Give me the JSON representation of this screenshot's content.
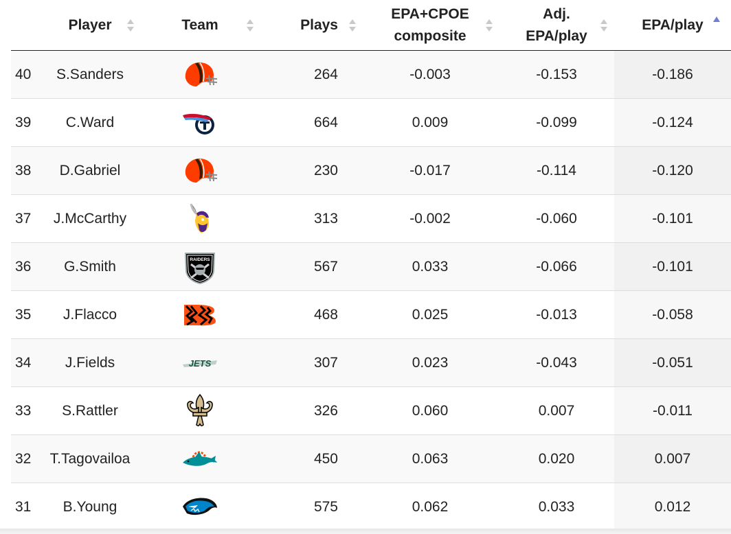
{
  "table": {
    "headers": {
      "rank": "",
      "player": "Player",
      "team": "Team",
      "plays": "Plays",
      "composite_line1": "EPA+CPOE",
      "composite_line2": "composite",
      "adj_line1": "Adj.",
      "adj_line2": "EPA/play",
      "epa": "EPA/play"
    },
    "sorted_column": "EPA/play",
    "sort_direction": "ascending",
    "rows": [
      {
        "rank": "40",
        "player": "S.Sanders",
        "team_logo": "browns-helmet-icon",
        "plays": "264",
        "composite": "-0.003",
        "adj_epa": "-0.153",
        "epa": "-0.186"
      },
      {
        "rank": "39",
        "player": "C.Ward",
        "team_logo": "titans-logo-icon",
        "plays": "664",
        "composite": "0.009",
        "adj_epa": "-0.099",
        "epa": "-0.124"
      },
      {
        "rank": "38",
        "player": "D.Gabriel",
        "team_logo": "browns-helmet-icon",
        "plays": "230",
        "composite": "-0.017",
        "adj_epa": "-0.114",
        "epa": "-0.120"
      },
      {
        "rank": "37",
        "player": "J.McCarthy",
        "team_logo": "vikings-logo-icon",
        "plays": "313",
        "composite": "-0.002",
        "adj_epa": "-0.060",
        "epa": "-0.101"
      },
      {
        "rank": "36",
        "player": "G.Smith",
        "team_logo": "raiders-shield-icon",
        "plays": "567",
        "composite": "0.033",
        "adj_epa": "-0.066",
        "epa": "-0.101"
      },
      {
        "rank": "35",
        "player": "J.Flacco",
        "team_logo": "bengals-logo-icon",
        "plays": "468",
        "composite": "0.025",
        "adj_epa": "-0.013",
        "epa": "-0.058"
      },
      {
        "rank": "34",
        "player": "J.Fields",
        "team_logo": "jets-wordmark-icon",
        "plays": "307",
        "composite": "0.023",
        "adj_epa": "-0.043",
        "epa": "-0.051"
      },
      {
        "rank": "33",
        "player": "S.Rattler",
        "team_logo": "saints-fleur-de-lis-icon",
        "plays": "326",
        "composite": "0.060",
        "adj_epa": "0.007",
        "epa": "-0.011"
      },
      {
        "rank": "32",
        "player": "T.Tagovailoa",
        "team_logo": "dolphins-logo-icon",
        "plays": "450",
        "composite": "0.063",
        "adj_epa": "0.020",
        "epa": "0.007"
      },
      {
        "rank": "31",
        "player": "B.Young",
        "team_logo": "panthers-logo-icon",
        "plays": "575",
        "composite": "0.062",
        "adj_epa": "0.033",
        "epa": "0.012"
      }
    ]
  },
  "logo_text": {
    "raiders": "RAIDERS",
    "jets": "JETS"
  },
  "colors": {
    "browns_orange": "#ff3c00",
    "browns_brown": "#311d00",
    "titans_navy": "#0c2340",
    "titans_blue": "#4b92db",
    "titans_red": "#c8102e",
    "vikings_purple": "#4f2683",
    "vikings_gold": "#ffc62f",
    "raiders_black": "#000000",
    "raiders_silver": "#a5acaf",
    "bengals_orange": "#fb4f14",
    "jets_green": "#125740",
    "saints_gold": "#d3bc8d",
    "dolphins_aqua": "#008e97",
    "dolphins_orange": "#fc4c02",
    "panthers_blue": "#0085ca",
    "sort_active": "#6f7ed8",
    "sort_inactive": "#c9c9c9"
  }
}
